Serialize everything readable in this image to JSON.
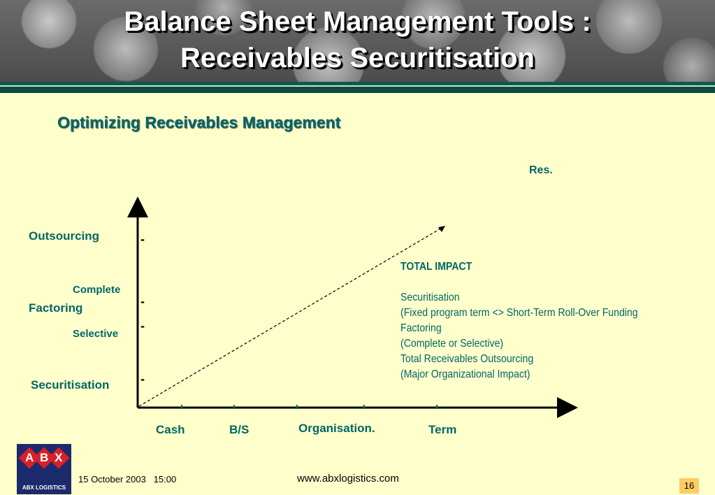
{
  "header": {
    "title_line1": "Balance Sheet Management Tools :",
    "title_line2": "Receivables Securitisation"
  },
  "subtitle": "Optimizing Receivables Management",
  "diagram": {
    "result_label": "Res.",
    "y_labels": {
      "outsourcing": "Outsourcing",
      "complete": "Complete",
      "factoring": "Factoring",
      "selective": "Selective",
      "securitisation": "Securitisation"
    },
    "tick_mark": "-",
    "x_labels": {
      "cash": "Cash",
      "bs": "B/S",
      "organisation": "Organisation.",
      "term": "Term"
    }
  },
  "impact": {
    "heading": "TOTAL IMPACT",
    "lines": [
      "Securitisation",
      "(Fixed program term <> Short-Term Roll-Over Funding",
      "Factoring",
      "(Complete or Selective)",
      "Total Receivables Outsourcing",
      "(Major Organizational Impact)"
    ]
  },
  "logo": {
    "letters": [
      "A",
      "B",
      "X"
    ],
    "text": "ABX LOGISTICS"
  },
  "footer": {
    "date": "15 October 2003   15:00",
    "url": "www.abxlogistics.com",
    "page": "16"
  },
  "colors": {
    "background": "#FFFFCC",
    "text_teal": "#006666",
    "banner_green": "#0f5a4a",
    "logo_blue": "#1b2a6b",
    "logo_red": "#d8202a",
    "page_badge": "#FFCC66"
  }
}
